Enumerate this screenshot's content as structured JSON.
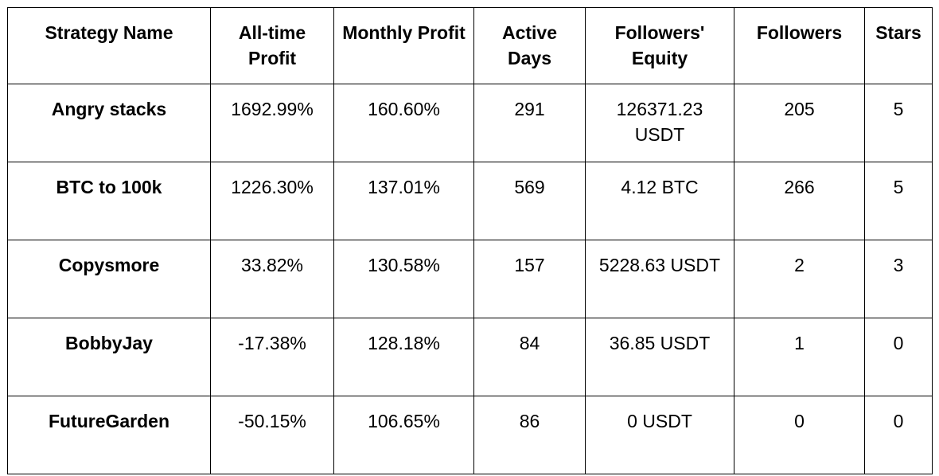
{
  "table": {
    "headers": [
      "Strategy Name",
      "All-time Profit",
      "Monthly Profit",
      "Active Days",
      "Followers' Equity",
      "Followers",
      "Stars"
    ],
    "rows": [
      [
        "Angry stacks",
        "1692.99%",
        "160.60%",
        "291",
        "126371.23 USDT",
        "205",
        "5"
      ],
      [
        "BTC to 100k",
        "1226.30%",
        "137.01%",
        "569",
        "4.12 BTC",
        "266",
        "5"
      ],
      [
        "Copysmore",
        "33.82%",
        "130.58%",
        "157",
        "5228.63 USDT",
        "2",
        "3"
      ],
      [
        "BobbyJay",
        "-17.38%",
        "128.18%",
        "84",
        "36.85 USDT",
        "1",
        "0"
      ],
      [
        "FutureGarden",
        "-50.15%",
        "106.65%",
        "86",
        "0 USDT",
        "0",
        "0"
      ]
    ]
  }
}
